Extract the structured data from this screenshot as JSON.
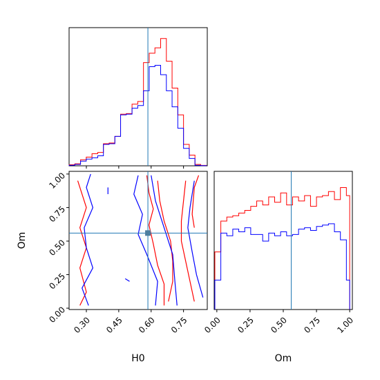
{
  "chart_data": {
    "type": "corner",
    "parameters": [
      "H0",
      "Om"
    ],
    "truth": {
      "H0": 0.585,
      "Om": 0.56
    },
    "colors": {
      "series_red": "#ff0000",
      "series_blue": "#0000ff",
      "truth_line": "#1f77b4",
      "truth_marker": "#4f7f9f"
    },
    "xlim_H0": [
      0.22,
      0.86
    ],
    "xlim_Om": [
      -0.02,
      1.02
    ],
    "ylim_Om": [
      -0.01,
      1.02
    ],
    "xlabel_left": "H0",
    "xlabel_right": "Om",
    "ylabel_left": "Om",
    "ticks_H0": [
      "0.30",
      "0.45",
      "0.60",
      "0.75"
    ],
    "ticks_Om": [
      "0.00",
      "0.25",
      "0.50",
      "0.75",
      "1.00"
    ],
    "hist_H0": {
      "bins": [
        0.22,
        0.2465,
        0.273,
        0.2995,
        0.326,
        0.3525,
        0.379,
        0.4055,
        0.432,
        0.4585,
        0.485,
        0.5115,
        0.538,
        0.5645,
        0.591,
        0.6175,
        0.644,
        0.6705,
        0.697,
        0.7235,
        0.75,
        0.7765,
        0.803,
        0.8295,
        0.856
      ],
      "series": [
        {
          "color": "red",
          "values": [
            0.008,
            0.015,
            0.045,
            0.065,
            0.09,
            0.1,
            0.165,
            0.17,
            0.22,
            0.385,
            0.39,
            0.46,
            0.48,
            0.77,
            0.84,
            0.88,
            0.95,
            0.78,
            0.58,
            0.38,
            0.16,
            0.08,
            0.01,
            0.003
          ]
        },
        {
          "color": "blue",
          "values": [
            0.004,
            0.01,
            0.035,
            0.05,
            0.06,
            0.075,
            0.16,
            0.165,
            0.22,
            0.38,
            0.385,
            0.43,
            0.45,
            0.56,
            0.74,
            0.75,
            0.68,
            0.56,
            0.44,
            0.28,
            0.13,
            0.055,
            0.004,
            0.001
          ]
        }
      ]
    },
    "hist_Om": {
      "bins": [
        -0.015,
        0.03,
        0.075,
        0.12,
        0.165,
        0.21,
        0.255,
        0.3,
        0.345,
        0.39,
        0.435,
        0.48,
        0.525,
        0.57,
        0.615,
        0.66,
        0.705,
        0.75,
        0.795,
        0.84,
        0.885,
        0.93,
        0.975,
        1.0
      ],
      "series": [
        {
          "color": "red",
          "values": [
            0.43,
            0.66,
            0.69,
            0.7,
            0.72,
            0.74,
            0.77,
            0.81,
            0.78,
            0.84,
            0.8,
            0.87,
            0.78,
            0.84,
            0.81,
            0.85,
            0.77,
            0.84,
            0.85,
            0.88,
            0.82,
            0.91,
            0.85
          ]
        },
        {
          "color": "blue",
          "values": [
            0.22,
            0.57,
            0.55,
            0.6,
            0.58,
            0.61,
            0.56,
            0.56,
            0.51,
            0.57,
            0.55,
            0.58,
            0.55,
            0.56,
            0.6,
            0.61,
            0.59,
            0.62,
            0.63,
            0.64,
            0.58,
            0.52,
            0.22
          ]
        }
      ]
    },
    "contours": [
      {
        "color": "red",
        "points": [
          [
            0.8,
            0.05
          ],
          [
            0.78,
            0.2
          ],
          [
            0.76,
            0.35
          ],
          [
            0.74,
            0.5
          ],
          [
            0.74,
            0.65
          ],
          [
            0.75,
            0.8
          ],
          [
            0.76,
            0.95
          ]
        ]
      },
      {
        "color": "red",
        "points": [
          [
            0.68,
            0.05
          ],
          [
            0.7,
            0.2
          ],
          [
            0.7,
            0.35
          ],
          [
            0.69,
            0.5
          ],
          [
            0.66,
            0.65
          ],
          [
            0.64,
            0.8
          ],
          [
            0.63,
            0.95
          ]
        ]
      },
      {
        "color": "red",
        "points": [
          [
            0.66,
            0.02
          ],
          [
            0.66,
            0.18
          ],
          [
            0.63,
            0.32
          ],
          [
            0.61,
            0.48
          ],
          [
            0.59,
            0.62
          ],
          [
            0.61,
            0.74
          ],
          [
            0.59,
            0.86
          ],
          [
            0.58,
            0.99
          ]
        ]
      },
      {
        "color": "red",
        "points": [
          [
            0.27,
            0.02
          ],
          [
            0.3,
            0.12
          ],
          [
            0.27,
            0.3
          ],
          [
            0.3,
            0.45
          ],
          [
            0.27,
            0.6
          ],
          [
            0.3,
            0.75
          ],
          [
            0.26,
            0.95
          ]
        ]
      },
      {
        "color": "red",
        "points": [
          [
            0.82,
            0.99
          ],
          [
            0.8,
            0.9
          ],
          [
            0.79,
            0.7
          ],
          [
            0.8,
            0.6
          ]
        ]
      },
      {
        "color": "blue",
        "points": [
          [
            0.84,
            0.08
          ],
          [
            0.81,
            0.25
          ],
          [
            0.79,
            0.42
          ],
          [
            0.77,
            0.6
          ],
          [
            0.78,
            0.75
          ],
          [
            0.8,
            0.95
          ]
        ]
      },
      {
        "color": "blue",
        "points": [
          [
            0.72,
            0.02
          ],
          [
            0.71,
            0.2
          ],
          [
            0.7,
            0.4
          ],
          [
            0.66,
            0.6
          ],
          [
            0.62,
            0.8
          ],
          [
            0.6,
            0.99
          ]
        ]
      },
      {
        "color": "blue",
        "points": [
          [
            0.62,
            0.02
          ],
          [
            0.63,
            0.2
          ],
          [
            0.58,
            0.4
          ],
          [
            0.54,
            0.55
          ],
          [
            0.56,
            0.7
          ],
          [
            0.52,
            0.85
          ],
          [
            0.54,
            0.99
          ]
        ]
      },
      {
        "color": "blue",
        "points": [
          [
            0.31,
            0.02
          ],
          [
            0.28,
            0.15
          ],
          [
            0.33,
            0.3
          ],
          [
            0.3,
            0.45
          ],
          [
            0.29,
            0.6
          ],
          [
            0.33,
            0.75
          ],
          [
            0.3,
            0.9
          ],
          [
            0.32,
            1.0
          ]
        ]
      },
      {
        "color": "blue",
        "points": [
          [
            0.48,
            0.22
          ],
          [
            0.5,
            0.2
          ]
        ]
      },
      {
        "color": "blue",
        "points": [
          [
            0.4,
            0.9
          ],
          [
            0.4,
            0.85
          ]
        ]
      }
    ]
  }
}
